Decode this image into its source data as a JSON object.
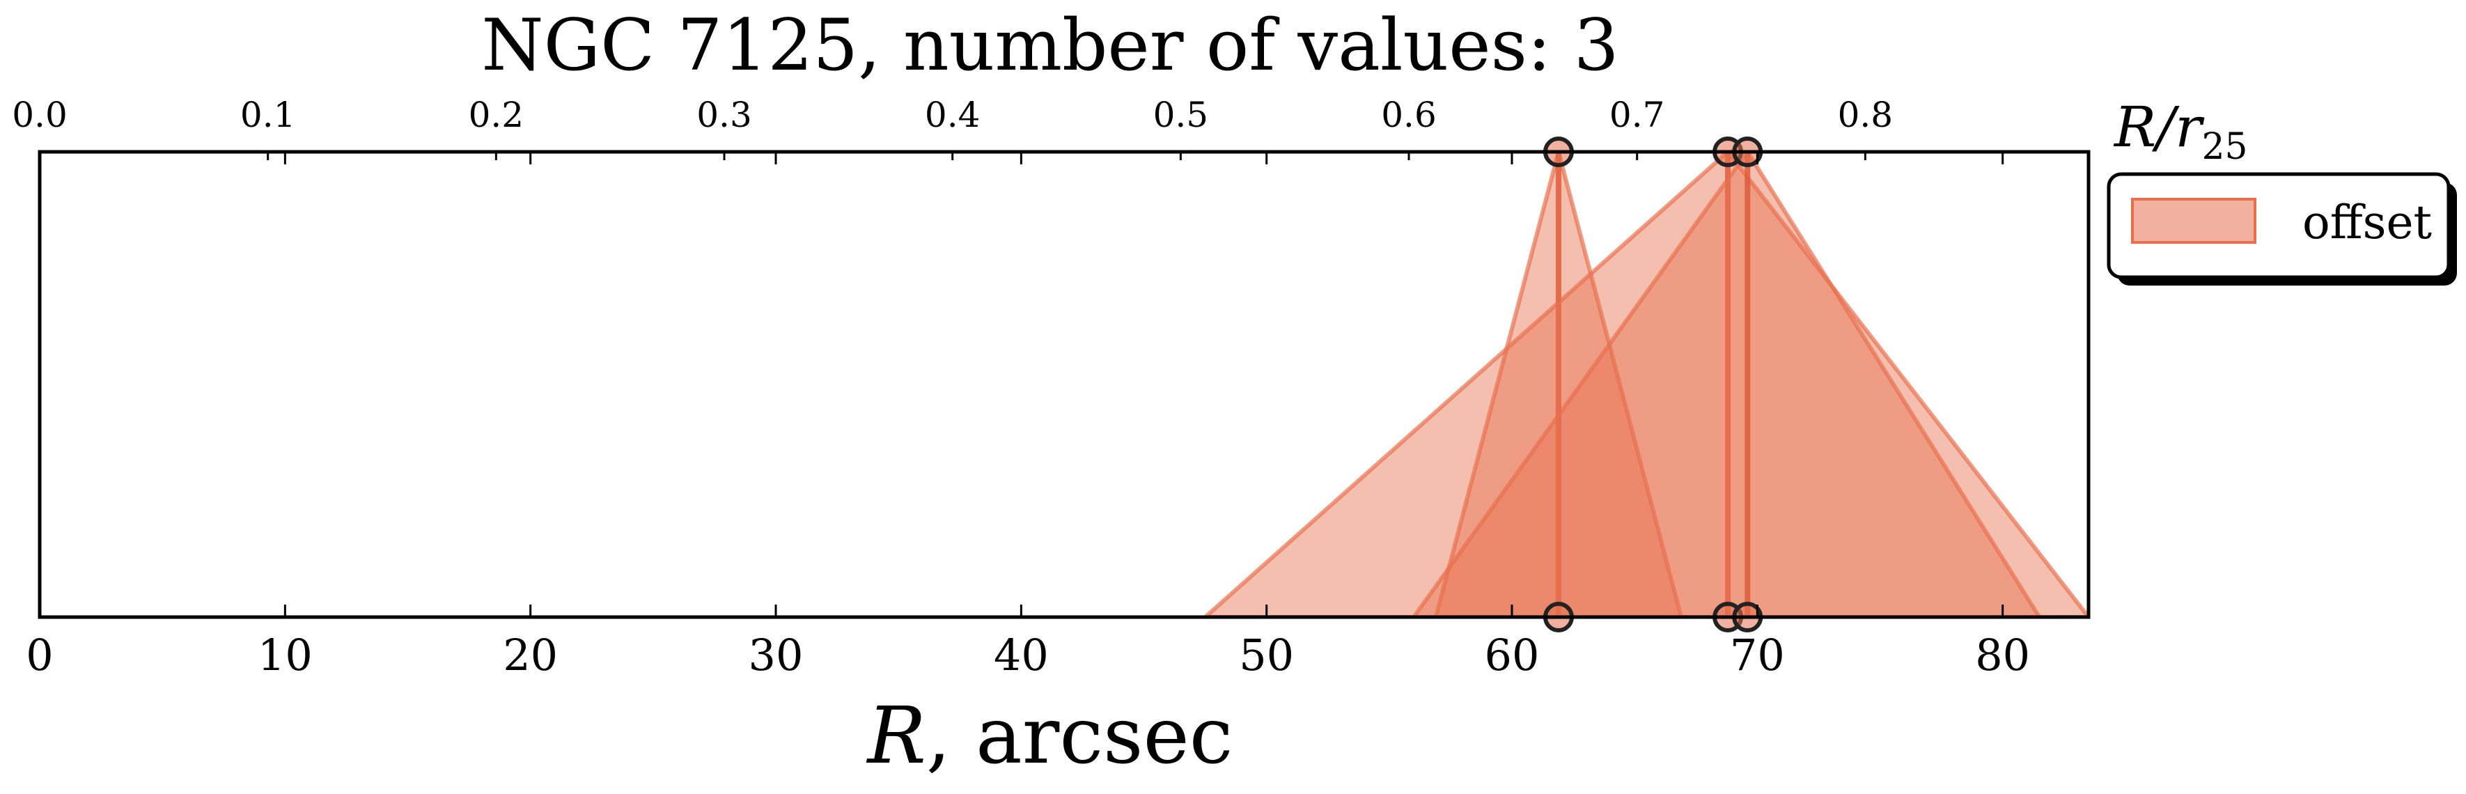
{
  "chart_data": {
    "type": "area",
    "title": "NGC 7125, number of values: 3",
    "xlabel_var": "R",
    "xlabel_rest": ", arcsec",
    "xlim": [
      0,
      83.5
    ],
    "xticks": [
      0,
      10,
      20,
      30,
      40,
      50,
      60,
      70,
      80
    ],
    "top_axis": {
      "label_var": "R/r",
      "label_sub": "25",
      "scale_arcsec_per_unit": 93.0,
      "ticks": [
        "0.0",
        "0.1",
        "0.2",
        "0.3",
        "0.4",
        "0.5",
        "0.6",
        "0.7",
        "0.8"
      ]
    },
    "legend": {
      "placement": "outside-right-top",
      "label": "offset"
    },
    "series": [
      {
        "name": "offset",
        "values": [
          {
            "center": 61.9,
            "low": 56.9,
            "high": 66.9
          },
          {
            "center": 68.8,
            "low": 47.5,
            "high": 83.5
          },
          {
            "center": 69.6,
            "low": 56.0,
            "high": 81.5
          }
        ]
      }
    ],
    "fill_color": "#e8704f",
    "line_color": "#e05a3a",
    "marker_edge": "#222222"
  }
}
